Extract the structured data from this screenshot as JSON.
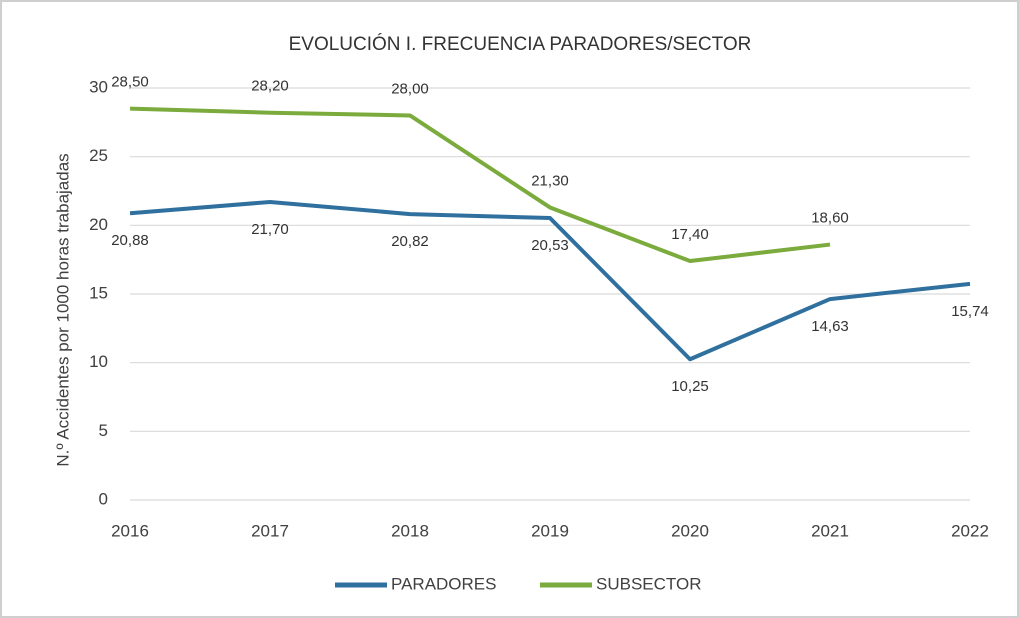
{
  "chart_data": {
    "type": "line",
    "title": "EVOLUCIÓN I. FRECUENCIA PARADORES/SECTOR",
    "y_label": "N.º Accidentes por 1000 horas trabajadas",
    "categories": [
      "2016",
      "2017",
      "2018",
      "2019",
      "2020",
      "2021",
      "2022"
    ],
    "series": [
      {
        "name": "PARADORES",
        "color": "#30709f",
        "values": [
          20.88,
          21.7,
          20.82,
          20.53,
          10.25,
          14.63,
          15.74
        ],
        "value_labels": [
          "20,88",
          "21,70",
          "20,82",
          "20,53",
          "10,25",
          "14,63",
          "15,74"
        ]
      },
      {
        "name": "SUBSECTOR",
        "color": "#7aab3c",
        "values": [
          28.5,
          28.2,
          28.0,
          21.3,
          17.4,
          18.6,
          null
        ],
        "value_labels": [
          "28,50",
          "28,20",
          "28,00",
          "21,30",
          "17,40",
          "18,60",
          null
        ]
      }
    ],
    "ylim": [
      0,
      30
    ],
    "yticks": [
      0,
      5,
      10,
      15,
      20,
      25,
      30
    ],
    "grid": true,
    "legend": "bottom"
  }
}
